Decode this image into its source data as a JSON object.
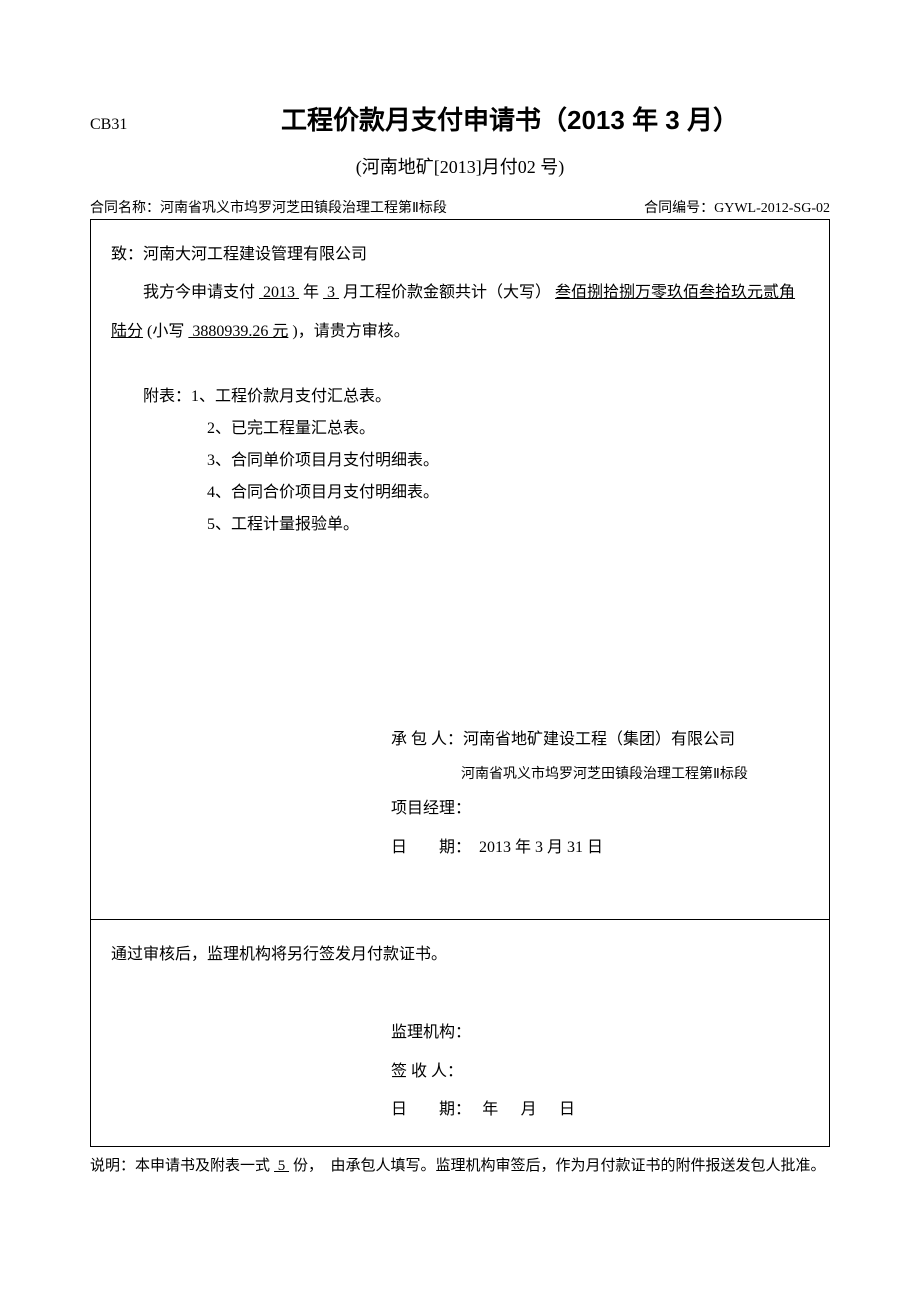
{
  "header": {
    "form_code": "CB31",
    "title": "工程价款月支付申请书（2013 年 3 月）",
    "subtitle": "(河南地矿[2013]月付02 号)"
  },
  "contract": {
    "name_label": "合同名称：",
    "name_value": "河南省巩义市坞罗河芝田镇段治理工程第Ⅱ标段",
    "number_label": "合同编号：",
    "number_value": "GYWL-2012-SG-02"
  },
  "body": {
    "addressee": "致：河南大河工程建设管理有限公司",
    "request_prefix": "我方今申请支付",
    "year": "  2013  ",
    "year_suffix": "年",
    "month": " 3 ",
    "month_suffix": "月工程价款金额共计（大写）",
    "amount_words": "叁佰捌拾捌万零玖佰叁拾玖元贰角陆分",
    "amount_prefix": "(小写",
    "amount_number": " 3880939.26 元",
    "amount_suffix": ")，请贵方审核。"
  },
  "attachments": {
    "header": "附表：1、工程价款月支付汇总表。",
    "items": [
      "2、已完工程量汇总表。",
      "3、合同单价项目月支付明细表。",
      "4、合同合价项目月支付明细表。",
      "5、工程计量报验单。"
    ]
  },
  "contractor": {
    "label": "承 包 人：",
    "name": "河南省地矿建设工程（集团）有限公司",
    "project": "河南省巩义市坞罗河芝田镇段治理工程第Ⅱ标段",
    "manager_label": "项目经理：",
    "date_label": "日　　期：",
    "date_value": "　2013 年 3 月  31 日"
  },
  "supervisor": {
    "notice": "通过审核后，监理机构将另行签发月付款证书。",
    "org_label": "监理机构：",
    "signer_label": "签 收 人：",
    "date_label": "日　　期：",
    "date_value": "　年　月　日"
  },
  "note": {
    "label": "说明：",
    "text_prefix": "本申请书及附表一式",
    "copies": " 5 ",
    "text_suffix": "份，　由承包人填写。监理机构审签后，作为月付款证书的附件报送发包人批准。"
  }
}
